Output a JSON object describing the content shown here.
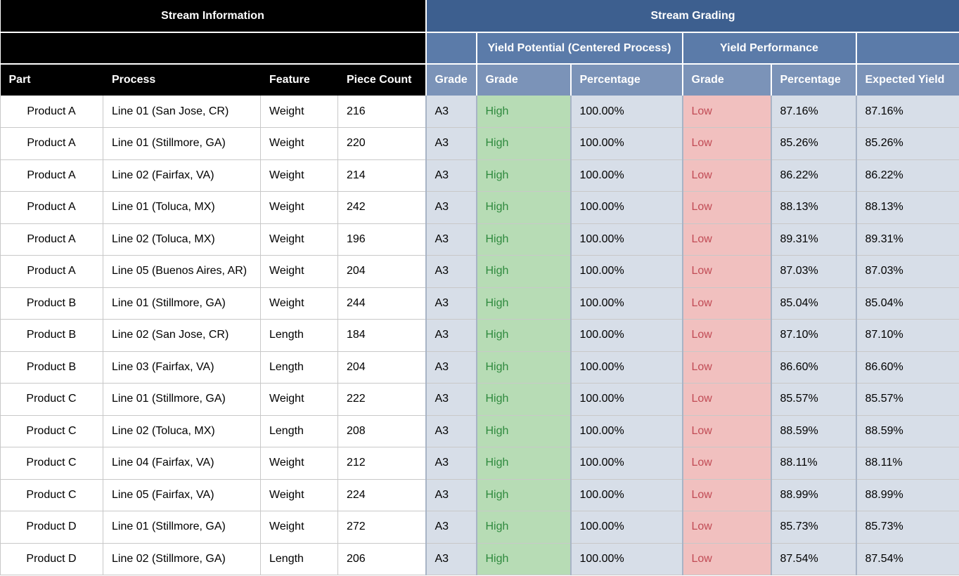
{
  "headers": {
    "stream_information": "Stream Information",
    "stream_grading": "Stream Grading",
    "yield_potential": "Yield Potential (Centered Process)",
    "yield_performance": "Yield Performance",
    "part": "Part",
    "process": "Process",
    "feature": "Feature",
    "piece_count": "Piece Count",
    "grade": "Grade",
    "potential_grade": "Grade",
    "potential_percentage": "Percentage",
    "performance_grade": "Grade",
    "performance_percentage": "Percentage",
    "expected_yield": "Expected Yield"
  },
  "colors": {
    "header_black": "#000000",
    "header_blue": "#3d5f8f",
    "subheader_blue": "#5b7ba9",
    "column_header_blue": "#7b93b8",
    "cell_blue": "#d7dee8",
    "high_bg": "#b7dcb5",
    "high_text": "#2f8a3e",
    "low_bg": "#f1c0bf",
    "low_text": "#c14b55"
  },
  "rows": [
    {
      "part": "Product A",
      "process": "Line 01 (San Jose, CR)",
      "feature": "Weight",
      "piece_count": "216",
      "grade": "A3",
      "potential_grade": "High",
      "potential_percentage": "100.00%",
      "performance_grade": "Low",
      "performance_percentage": "87.16%",
      "expected_yield": "87.16%"
    },
    {
      "part": "Product A",
      "process": "Line 01 (Stillmore, GA)",
      "feature": "Weight",
      "piece_count": "220",
      "grade": "A3",
      "potential_grade": "High",
      "potential_percentage": "100.00%",
      "performance_grade": "Low",
      "performance_percentage": "85.26%",
      "expected_yield": "85.26%"
    },
    {
      "part": "Product A",
      "process": "Line 02 (Fairfax, VA)",
      "feature": "Weight",
      "piece_count": "214",
      "grade": "A3",
      "potential_grade": "High",
      "potential_percentage": "100.00%",
      "performance_grade": "Low",
      "performance_percentage": "86.22%",
      "expected_yield": "86.22%"
    },
    {
      "part": "Product A",
      "process": "Line 01 (Toluca, MX)",
      "feature": "Weight",
      "piece_count": "242",
      "grade": "A3",
      "potential_grade": "High",
      "potential_percentage": "100.00%",
      "performance_grade": "Low",
      "performance_percentage": "88.13%",
      "expected_yield": "88.13%"
    },
    {
      "part": "Product A",
      "process": "Line 02 (Toluca, MX)",
      "feature": "Weight",
      "piece_count": "196",
      "grade": "A3",
      "potential_grade": "High",
      "potential_percentage": "100.00%",
      "performance_grade": "Low",
      "performance_percentage": "89.31%",
      "expected_yield": "89.31%"
    },
    {
      "part": "Product A",
      "process": "Line 05 (Buenos Aires, AR)",
      "feature": "Weight",
      "piece_count": "204",
      "grade": "A3",
      "potential_grade": "High",
      "potential_percentage": "100.00%",
      "performance_grade": "Low",
      "performance_percentage": "87.03%",
      "expected_yield": "87.03%"
    },
    {
      "part": "Product B",
      "process": "Line 01 (Stillmore, GA)",
      "feature": "Weight",
      "piece_count": "244",
      "grade": "A3",
      "potential_grade": "High",
      "potential_percentage": "100.00%",
      "performance_grade": "Low",
      "performance_percentage": "85.04%",
      "expected_yield": "85.04%"
    },
    {
      "part": "Product B",
      "process": "Line 02 (San Jose, CR)",
      "feature": "Length",
      "piece_count": "184",
      "grade": "A3",
      "potential_grade": "High",
      "potential_percentage": "100.00%",
      "performance_grade": "Low",
      "performance_percentage": "87.10%",
      "expected_yield": "87.10%"
    },
    {
      "part": "Product B",
      "process": "Line 03 (Fairfax, VA)",
      "feature": "Length",
      "piece_count": "204",
      "grade": "A3",
      "potential_grade": "High",
      "potential_percentage": "100.00%",
      "performance_grade": "Low",
      "performance_percentage": "86.60%",
      "expected_yield": "86.60%"
    },
    {
      "part": "Product C",
      "process": "Line 01 (Stillmore, GA)",
      "feature": "Weight",
      "piece_count": "222",
      "grade": "A3",
      "potential_grade": "High",
      "potential_percentage": "100.00%",
      "performance_grade": "Low",
      "performance_percentage": "85.57%",
      "expected_yield": "85.57%"
    },
    {
      "part": "Product C",
      "process": "Line 02 (Toluca, MX)",
      "feature": "Length",
      "piece_count": "208",
      "grade": "A3",
      "potential_grade": "High",
      "potential_percentage": "100.00%",
      "performance_grade": "Low",
      "performance_percentage": "88.59%",
      "expected_yield": "88.59%"
    },
    {
      "part": "Product C",
      "process": "Line 04 (Fairfax, VA)",
      "feature": "Weight",
      "piece_count": "212",
      "grade": "A3",
      "potential_grade": "High",
      "potential_percentage": "100.00%",
      "performance_grade": "Low",
      "performance_percentage": "88.11%",
      "expected_yield": "88.11%"
    },
    {
      "part": "Product C",
      "process": "Line 05 (Fairfax, VA)",
      "feature": "Weight",
      "piece_count": "224",
      "grade": "A3",
      "potential_grade": "High",
      "potential_percentage": "100.00%",
      "performance_grade": "Low",
      "performance_percentage": "88.99%",
      "expected_yield": "88.99%"
    },
    {
      "part": "Product D",
      "process": "Line 01 (Stillmore, GA)",
      "feature": "Weight",
      "piece_count": "272",
      "grade": "A3",
      "potential_grade": "High",
      "potential_percentage": "100.00%",
      "performance_grade": "Low",
      "performance_percentage": "85.73%",
      "expected_yield": "85.73%"
    },
    {
      "part": "Product D",
      "process": "Line 02 (Stillmore, GA)",
      "feature": "Length",
      "piece_count": "206",
      "grade": "A3",
      "potential_grade": "High",
      "potential_percentage": "100.00%",
      "performance_grade": "Low",
      "performance_percentage": "87.54%",
      "expected_yield": "87.54%"
    }
  ]
}
